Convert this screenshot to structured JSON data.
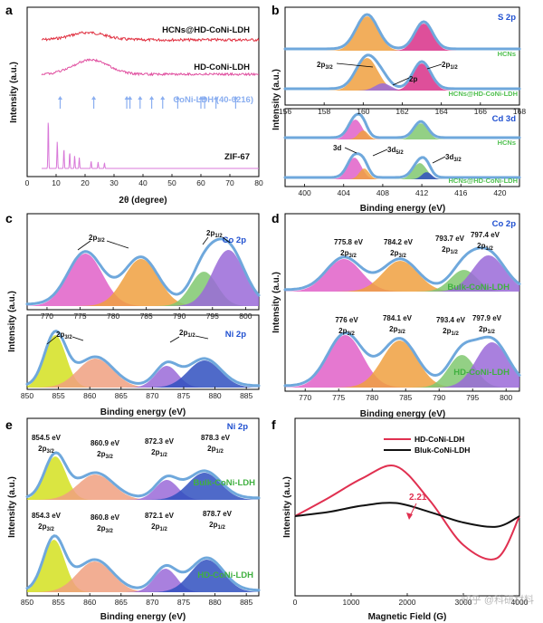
{
  "colors": {
    "blue": "#6fa8dc",
    "pink": "#e060c8",
    "orange": "#f0a040",
    "magenta": "#d83088",
    "green": "#80c870",
    "purple": "#9a6ad8",
    "yellow": "#d4e020",
    "salmon": "#f0a080",
    "navy": "#3050c0",
    "red": "#e03050"
  },
  "chart_data": [
    {
      "panel": "a",
      "type": "line",
      "xlabel": "2θ (degree)",
      "ylabel": "Intensity (a.u.)",
      "xlim": [
        0,
        80
      ],
      "x_ticks": [
        0,
        10,
        20,
        30,
        40,
        50,
        60,
        70,
        80
      ],
      "series": [
        {
          "name": "HCNs@HD-CoNi-LDH"
        },
        {
          "name": "HD-CoNi-LDH"
        },
        {
          "name": "CoNi-LDH (40-0216)",
          "peaks": [
            11.4,
            23.0,
            34.4,
            35.5,
            39.0,
            43.0,
            46.8,
            52.0,
            60.0,
            61.3,
            65.2,
            72.0
          ]
        },
        {
          "name": "ZIF-67",
          "peaks": [
            7.3,
            10.4,
            12.7,
            14.7,
            16.4,
            18.0,
            22.1,
            24.5,
            26.7
          ]
        }
      ]
    },
    {
      "panel": "b",
      "type": "area",
      "xlabel": "Binding energy (eV)",
      "ylabel": "Intensity (a.u.)",
      "top": {
        "title": "S 2p",
        "xlim": [
          156,
          168
        ],
        "x_ticks": [
          156,
          158,
          160,
          162,
          164,
          166,
          168
        ],
        "samples": [
          "HCNs",
          "HCNs@HD-CoNi-LDH"
        ],
        "labels": [
          "2p3/2",
          "2p",
          "2p1/2"
        ]
      },
      "bottom": {
        "title": "Cd 3d",
        "xlim": [
          398,
          422
        ],
        "x_ticks": [
          400,
          404,
          408,
          412,
          416,
          420
        ],
        "samples": [
          "HCNs",
          "HCNs@HD-CoNi-LDH"
        ],
        "labels": [
          "3d",
          "3d5/2",
          "3d3/2"
        ]
      }
    },
    {
      "panel": "c",
      "type": "area",
      "xlabel": "Binding energy (eV)",
      "ylabel": "Intensity (a.u.)",
      "top": {
        "title": "Co 2p",
        "xlim": [
          767,
          802
        ],
        "x_ticks": [
          770,
          775,
          780,
          785,
          790,
          795,
          800
        ],
        "labels": [
          "2p3/2",
          "2p1/2"
        ]
      },
      "bottom": {
        "title": "Ni 2p",
        "xlim": [
          850,
          887
        ],
        "x_ticks": [
          850,
          855,
          860,
          865,
          870,
          875,
          880,
          885
        ],
        "labels": [
          "2p3/2",
          "2p1/2"
        ]
      }
    },
    {
      "panel": "d",
      "type": "area",
      "title": "Co 2p",
      "xlabel": "Binding energy (eV)",
      "ylabel": "Intensity (a.u.)",
      "xlim": [
        767,
        802
      ],
      "x_ticks": [
        770,
        775,
        780,
        785,
        790,
        795,
        800
      ],
      "samples": [
        {
          "name": "Bulk-CoNi-LDH",
          "peaks": [
            {
              "value": "775.8 eV",
              "sub": "2p3/2"
            },
            {
              "value": "784.2 eV",
              "sub": "2p3/2"
            },
            {
              "value": "793.7 eV",
              "sub": "2p1/2"
            },
            {
              "value": "797.4 eV",
              "sub": "2p1/2"
            }
          ]
        },
        {
          "name": "HD-CoNi-LDH",
          "peaks": [
            {
              "value": "776 eV",
              "sub": "2p3/2"
            },
            {
              "value": "784.1 eV",
              "sub": "2p3/2"
            },
            {
              "value": "793.4 eV",
              "sub": "2p1/2"
            },
            {
              "value": "797.9 eV",
              "sub": "2p1/2"
            }
          ]
        }
      ]
    },
    {
      "panel": "e",
      "type": "area",
      "title": "Ni 2p",
      "xlabel": "Binding energy (eV)",
      "ylabel": "Intensity (a.u.)",
      "xlim": [
        850,
        887
      ],
      "x_ticks": [
        850,
        855,
        860,
        865,
        870,
        875,
        880,
        885
      ],
      "samples": [
        {
          "name": "Bulk-CoNi-LDH",
          "peaks": [
            {
              "value": "854.5 eV",
              "sub": "2p3/2"
            },
            {
              "value": "860.9 eV",
              "sub": "2p3/2"
            },
            {
              "value": "872.3 eV",
              "sub": "2p1/2"
            },
            {
              "value": "878.3 eV",
              "sub": "2p1/2"
            }
          ]
        },
        {
          "name": "HD-CoNi-LDH",
          "peaks": [
            {
              "value": "854.3 eV",
              "sub": "2p3/2"
            },
            {
              "value": "860.8 eV",
              "sub": "2p3/2"
            },
            {
              "value": "872.1 eV",
              "sub": "2p1/2"
            },
            {
              "value": "878.7 eV",
              "sub": "2p1/2"
            }
          ]
        }
      ]
    },
    {
      "panel": "f",
      "type": "line",
      "xlabel": "Magnetic Field (G)",
      "ylabel": "Intensity (a.u.)",
      "xlim": [
        0,
        4000
      ],
      "x_ticks": [
        0,
        1000,
        2000,
        3000,
        4000
      ],
      "annotation": "2.21",
      "series": [
        {
          "name": "HD-CoNi-LDH",
          "color": "#e03050",
          "x": [
            0,
            600,
            1200,
            1800,
            2400,
            3000,
            3600,
            4000
          ],
          "y": [
            0.0,
            0.35,
            0.72,
            0.95,
            0.3,
            -0.55,
            -0.8,
            0.0
          ]
        },
        {
          "name": "Bluk-CoNi-LDH",
          "color": "#111111",
          "x": [
            0,
            600,
            1200,
            1800,
            2400,
            3000,
            3600,
            4000
          ],
          "y": [
            0.0,
            0.08,
            0.2,
            0.25,
            0.08,
            -0.12,
            -0.2,
            0.0
          ]
        }
      ]
    }
  ],
  "watermark": "知乎 @科研材料"
}
